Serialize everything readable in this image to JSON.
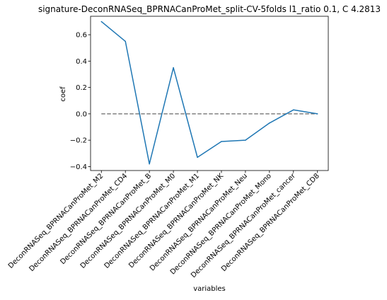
{
  "chart_data": {
    "type": "line",
    "title": "signature-DeconRNASeq_BPRNACanProMet_split-CV-5folds l1_ratio 0.1, C 4.2813",
    "xlabel": "variables",
    "ylabel": "coef",
    "categories": [
      "DeconRNASeq_BPRNACanProMet_M2",
      "DeconRNASeq_BPRNACanProMet_CD4",
      "DeconRNASeq_BPRNACanProMet_B",
      "DeconRNASeq_BPRNACanProMet_M0",
      "DeconRNASeq_BPRNACanProMet_M1",
      "DeconRNASeq_BPRNACanProMet_NK",
      "DeconRNASeq_BPRNACanProMet_Neu",
      "DeconRNASeq_BPRNACanProMet_Mono",
      "DeconRNASeq_BPRNACanProMet_cancer",
      "DeconRNASeq_BPRNACanProMet_CD8"
    ],
    "values": [
      0.7,
      0.55,
      -0.38,
      0.35,
      -0.33,
      -0.21,
      -0.2,
      -0.07,
      0.03,
      0.0
    ],
    "reference_line": {
      "y": 0,
      "style": "dashed",
      "color": "#808080"
    },
    "ylim": [
      -0.43,
      0.74
    ],
    "yticks": [
      -0.4,
      -0.2,
      0.0,
      0.2,
      0.4,
      0.6
    ],
    "ytick_labels": [
      "−0.4",
      "−0.2",
      "0.0",
      "0.2",
      "0.4",
      "0.6"
    ],
    "line_color": "#1f77b4",
    "grid": false,
    "legend": "none"
  }
}
